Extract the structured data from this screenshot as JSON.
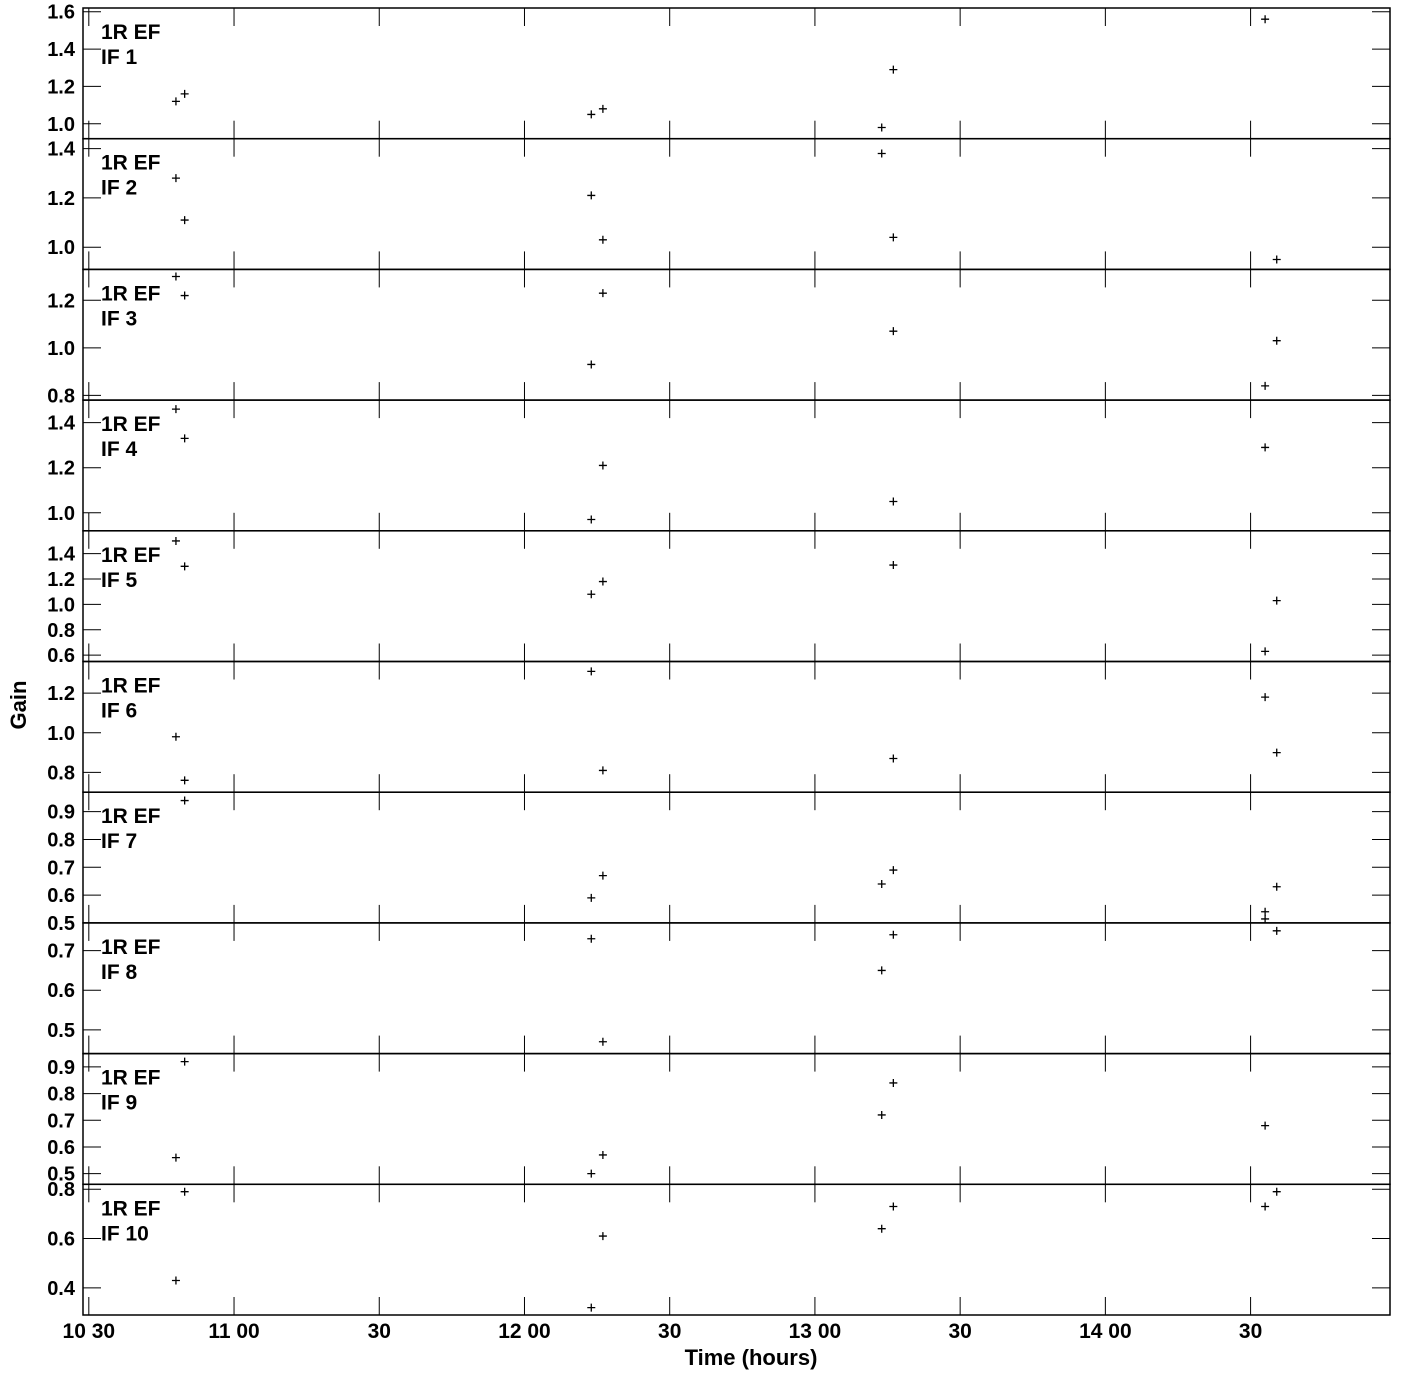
{
  "chart_data": {
    "type": "scatter",
    "title": "",
    "xlabel": "Time (hours)",
    "ylabel": "Gain",
    "x_unit": "decimal hours",
    "xlim": [
      10.48,
      14.98
    ],
    "x_ticks": [
      {
        "value": 10.5,
        "label": "10 30"
      },
      {
        "value": 11.0,
        "label": "11 00"
      },
      {
        "value": 11.5,
        "label": "30"
      },
      {
        "value": 12.0,
        "label": "12 00"
      },
      {
        "value": 12.5,
        "label": "30"
      },
      {
        "value": 13.0,
        "label": "13 00"
      },
      {
        "value": 13.5,
        "label": "30"
      },
      {
        "value": 14.0,
        "label": "14 00"
      },
      {
        "value": 14.5,
        "label": "30"
      }
    ],
    "panels": [
      {
        "label1": "1R EF",
        "label2": "IF 1",
        "ylim": [
          0.92,
          1.62
        ],
        "yticks": [
          1.0,
          1.2,
          1.4,
          1.6
        ],
        "yticklabels": [
          "1.0",
          "1.2",
          "1.4",
          "1.6"
        ],
        "points": [
          [
            10.8,
            1.12
          ],
          [
            10.83,
            1.16
          ],
          [
            12.23,
            1.05
          ],
          [
            12.27,
            1.08
          ],
          [
            13.23,
            0.98
          ],
          [
            13.27,
            1.29
          ],
          [
            14.55,
            1.56
          ]
        ]
      },
      {
        "label1": "1R EF",
        "label2": "IF 2",
        "ylim": [
          0.91,
          1.44
        ],
        "yticks": [
          1.0,
          1.2,
          1.4
        ],
        "yticklabels": [
          "1.0",
          "1.2",
          "1.4"
        ],
        "points": [
          [
            10.8,
            1.28
          ],
          [
            10.83,
            1.11
          ],
          [
            12.23,
            1.21
          ],
          [
            12.27,
            1.03
          ],
          [
            13.23,
            1.38
          ],
          [
            13.27,
            1.04
          ],
          [
            14.59,
            0.95
          ]
        ]
      },
      {
        "label1": "1R EF",
        "label2": "IF 3",
        "ylim": [
          0.78,
          1.33
        ],
        "yticks": [
          0.8,
          1.0,
          1.2
        ],
        "yticklabels": [
          "0.8",
          "1.0",
          "1.2"
        ],
        "points": [
          [
            10.8,
            1.3
          ],
          [
            10.83,
            1.22
          ],
          [
            12.23,
            0.93
          ],
          [
            12.27,
            1.23
          ],
          [
            13.27,
            1.07
          ],
          [
            14.55,
            0.84
          ],
          [
            14.59,
            1.03
          ]
        ]
      },
      {
        "label1": "1R EF",
        "label2": "IF 4",
        "ylim": [
          0.92,
          1.5
        ],
        "yticks": [
          1.0,
          1.2,
          1.4
        ],
        "yticklabels": [
          "1.0",
          "1.2",
          "1.4"
        ],
        "points": [
          [
            10.8,
            1.46
          ],
          [
            10.83,
            1.33
          ],
          [
            12.23,
            0.97
          ],
          [
            12.27,
            1.21
          ],
          [
            13.27,
            1.05
          ],
          [
            14.55,
            1.29
          ]
        ]
      },
      {
        "label1": "1R EF",
        "label2": "IF 5",
        "ylim": [
          0.55,
          1.58
        ],
        "yticks": [
          0.6,
          0.8,
          1.0,
          1.2,
          1.4
        ],
        "yticklabels": [
          "0.6",
          "0.8",
          "1.0",
          "1.2",
          "1.4"
        ],
        "points": [
          [
            10.8,
            1.5
          ],
          [
            10.83,
            1.3
          ],
          [
            12.23,
            1.08
          ],
          [
            12.27,
            1.18
          ],
          [
            13.27,
            1.31
          ],
          [
            14.55,
            0.63
          ],
          [
            14.59,
            1.03
          ]
        ]
      },
      {
        "label1": "1R EF",
        "label2": "IF 6",
        "ylim": [
          0.7,
          1.36
        ],
        "yticks": [
          0.8,
          1.0,
          1.2
        ],
        "yticklabels": [
          "0.8",
          "1.0",
          "1.2"
        ],
        "points": [
          [
            10.8,
            0.98
          ],
          [
            10.83,
            0.76
          ],
          [
            12.23,
            1.31
          ],
          [
            12.27,
            0.81
          ],
          [
            13.27,
            0.87
          ],
          [
            14.55,
            1.18
          ],
          [
            14.59,
            0.9
          ]
        ]
      },
      {
        "label1": "1R EF",
        "label2": "IF 7",
        "ylim": [
          0.5,
          0.97
        ],
        "yticks": [
          0.5,
          0.6,
          0.7,
          0.8,
          0.9
        ],
        "yticklabels": [
          "0.5",
          "0.6",
          "0.7",
          "0.8",
          "0.9"
        ],
        "points": [
          [
            10.83,
            0.94
          ],
          [
            12.23,
            0.59
          ],
          [
            12.27,
            0.67
          ],
          [
            13.23,
            0.64
          ],
          [
            13.27,
            0.69
          ],
          [
            14.55,
            0.54
          ],
          [
            14.59,
            0.63
          ]
        ]
      },
      {
        "label1": "1R EF",
        "label2": "IF 8",
        "ylim": [
          0.44,
          0.77
        ],
        "yticks": [
          0.5,
          0.6,
          0.7
        ],
        "yticklabels": [
          "0.5",
          "0.6",
          "0.7"
        ],
        "points": [
          [
            12.23,
            0.73
          ],
          [
            12.27,
            0.47
          ],
          [
            13.23,
            0.65
          ],
          [
            13.27,
            0.74
          ],
          [
            14.55,
            0.78
          ],
          [
            14.59,
            0.75
          ]
        ]
      },
      {
        "label1": "1R EF",
        "label2": "IF 9",
        "ylim": [
          0.46,
          0.95
        ],
        "yticks": [
          0.5,
          0.6,
          0.7,
          0.8,
          0.9
        ],
        "yticklabels": [
          "0.5",
          "0.6",
          "0.7",
          "0.8",
          "0.9"
        ],
        "points": [
          [
            10.8,
            0.56
          ],
          [
            10.83,
            0.92
          ],
          [
            12.23,
            0.5
          ],
          [
            12.27,
            0.57
          ],
          [
            13.23,
            0.72
          ],
          [
            13.27,
            0.84
          ],
          [
            14.55,
            0.68
          ]
        ]
      },
      {
        "label1": "1R EF",
        "label2": "IF 10",
        "ylim": [
          0.29,
          0.82
        ],
        "yticks": [
          0.4,
          0.6,
          0.8
        ],
        "yticklabels": [
          "0.4",
          "0.6",
          "0.8"
        ],
        "points": [
          [
            10.8,
            0.43
          ],
          [
            10.83,
            0.79
          ],
          [
            12.23,
            0.32
          ],
          [
            12.27,
            0.61
          ],
          [
            13.23,
            0.64
          ],
          [
            13.27,
            0.73
          ],
          [
            14.55,
            0.73
          ],
          [
            14.59,
            0.79
          ]
        ]
      }
    ]
  }
}
